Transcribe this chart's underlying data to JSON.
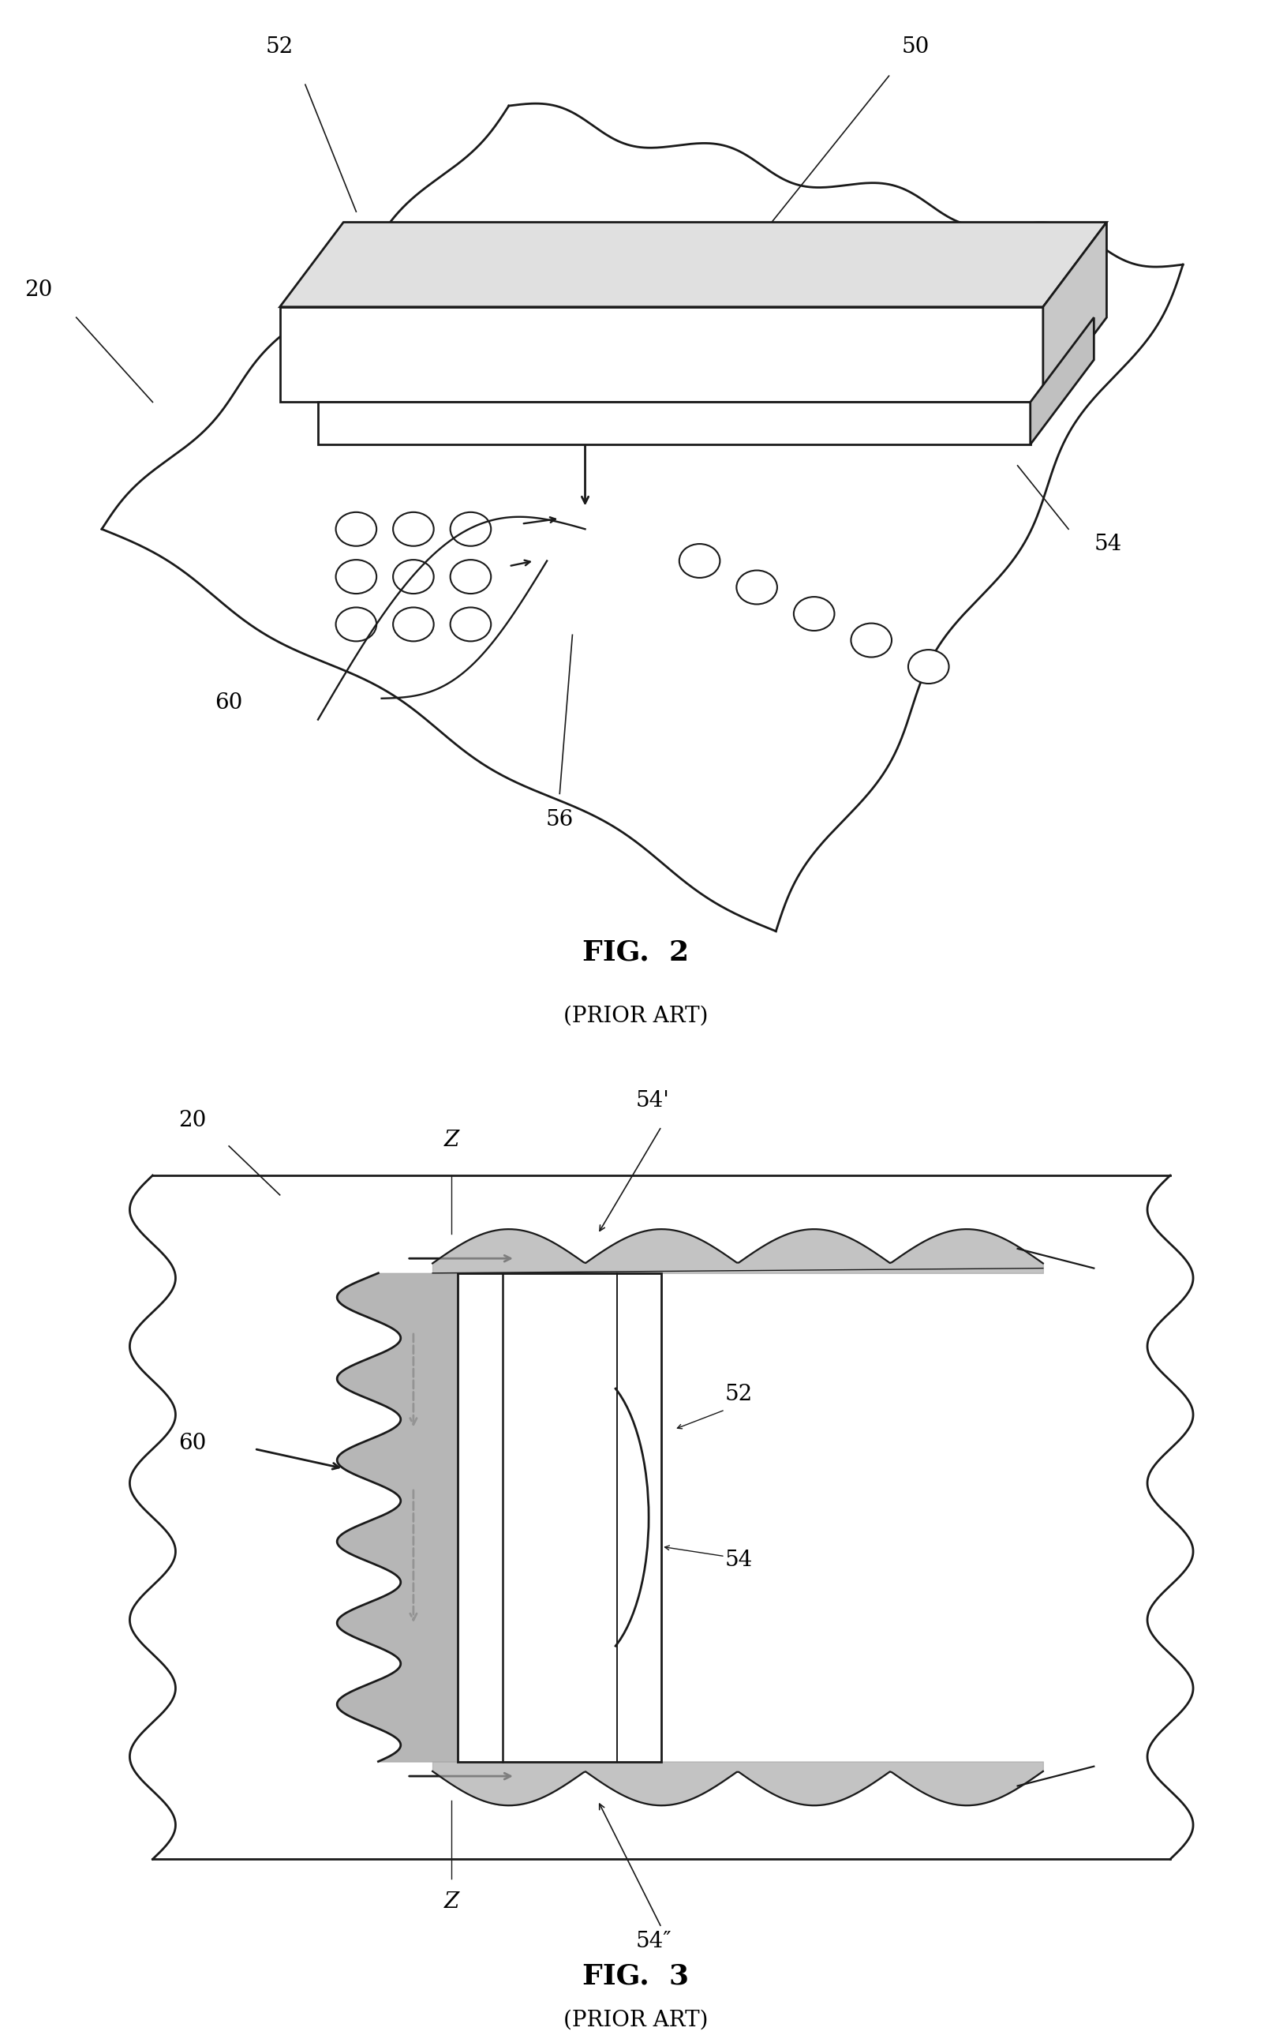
{
  "fig_width": 16.12,
  "fig_height": 25.78,
  "bg_color": "#ffffff",
  "line_color": "#1a1a1a",
  "fig2_title": "FIG.  2",
  "fig2_subtitle": "(PRIOR ART)",
  "fig3_title": "FIG.  3",
  "fig3_subtitle": "(PRIOR ART)",
  "title_fontsize": 26,
  "subtitle_fontsize": 20,
  "label_fontsize": 20
}
